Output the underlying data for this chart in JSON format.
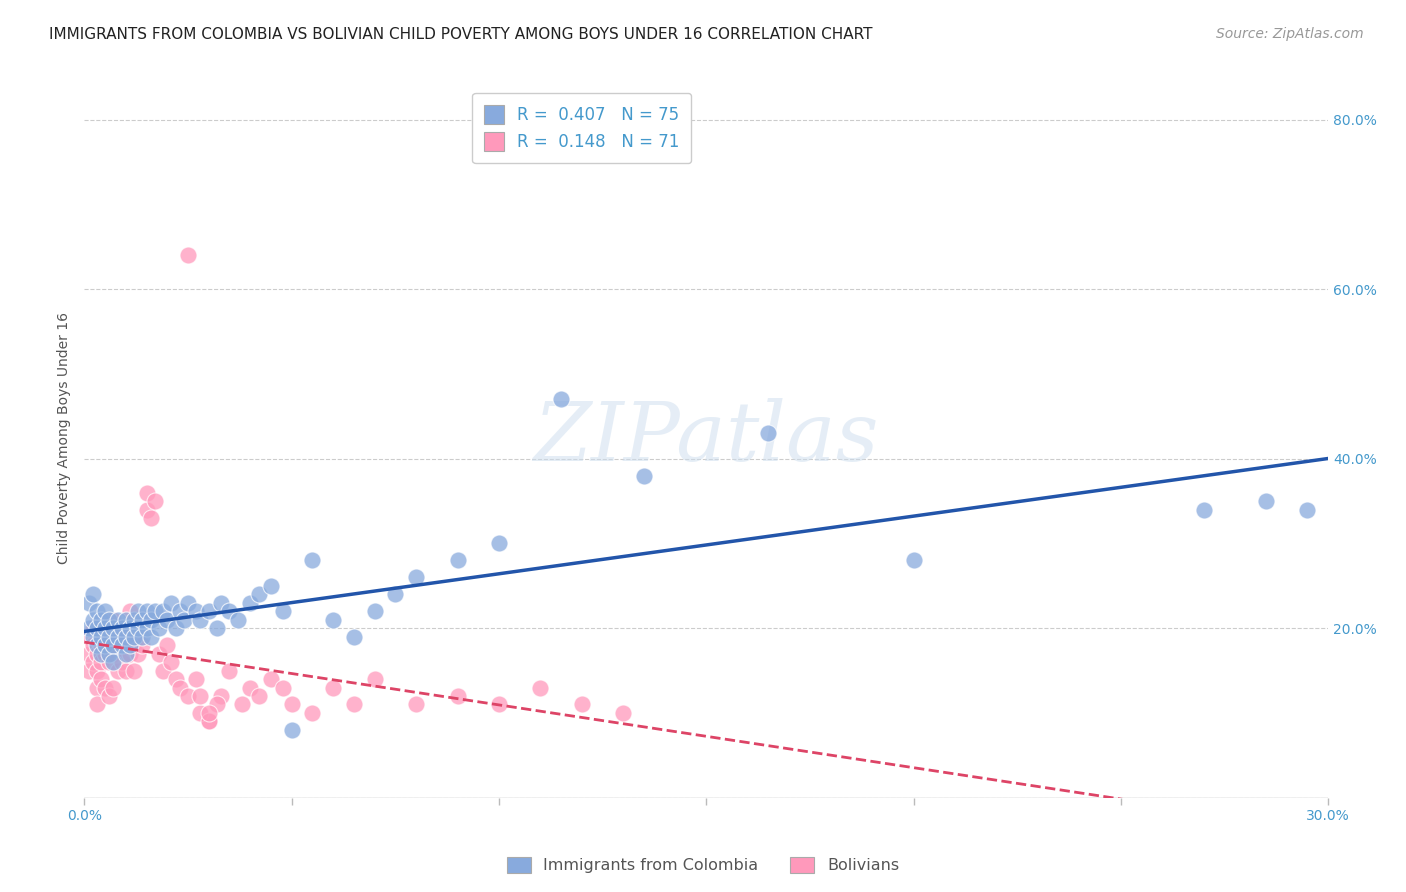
{
  "title": "IMMIGRANTS FROM COLOMBIA VS BOLIVIAN CHILD POVERTY AMONG BOYS UNDER 16 CORRELATION CHART",
  "source": "Source: ZipAtlas.com",
  "ylabel": "Child Poverty Among Boys Under 16",
  "xlim": [
    0.0,
    0.3
  ],
  "ylim": [
    0.0,
    0.85
  ],
  "blue_color": "#88AADD",
  "pink_color": "#FF99BB",
  "blue_line_color": "#2255AA",
  "pink_line_color": "#DD4466",
  "axis_color": "#4499CC",
  "blue_R": 0.407,
  "blue_N": 75,
  "pink_R": 0.148,
  "pink_N": 71,
  "blue_scatter_x": [
    0.001,
    0.001,
    0.002,
    0.002,
    0.002,
    0.003,
    0.003,
    0.003,
    0.004,
    0.004,
    0.004,
    0.005,
    0.005,
    0.005,
    0.006,
    0.006,
    0.006,
    0.007,
    0.007,
    0.007,
    0.008,
    0.008,
    0.009,
    0.009,
    0.01,
    0.01,
    0.01,
    0.011,
    0.011,
    0.012,
    0.012,
    0.013,
    0.013,
    0.014,
    0.014,
    0.015,
    0.015,
    0.016,
    0.016,
    0.017,
    0.018,
    0.019,
    0.02,
    0.021,
    0.022,
    0.023,
    0.024,
    0.025,
    0.027,
    0.028,
    0.03,
    0.032,
    0.033,
    0.035,
    0.037,
    0.04,
    0.042,
    0.045,
    0.048,
    0.05,
    0.055,
    0.06,
    0.065,
    0.07,
    0.075,
    0.08,
    0.09,
    0.1,
    0.115,
    0.135,
    0.165,
    0.2,
    0.27,
    0.285,
    0.295
  ],
  "blue_scatter_y": [
    0.2,
    0.23,
    0.19,
    0.21,
    0.24,
    0.18,
    0.2,
    0.22,
    0.17,
    0.19,
    0.21,
    0.18,
    0.2,
    0.22,
    0.17,
    0.19,
    0.21,
    0.18,
    0.2,
    0.16,
    0.19,
    0.21,
    0.18,
    0.2,
    0.17,
    0.19,
    0.21,
    0.18,
    0.2,
    0.19,
    0.21,
    0.2,
    0.22,
    0.19,
    0.21,
    0.2,
    0.22,
    0.19,
    0.21,
    0.22,
    0.2,
    0.22,
    0.21,
    0.23,
    0.2,
    0.22,
    0.21,
    0.23,
    0.22,
    0.21,
    0.22,
    0.2,
    0.23,
    0.22,
    0.21,
    0.23,
    0.24,
    0.25,
    0.22,
    0.08,
    0.28,
    0.21,
    0.19,
    0.22,
    0.24,
    0.26,
    0.28,
    0.3,
    0.47,
    0.38,
    0.43,
    0.28,
    0.34,
    0.35,
    0.34
  ],
  "pink_scatter_x": [
    0.001,
    0.001,
    0.001,
    0.002,
    0.002,
    0.002,
    0.003,
    0.003,
    0.003,
    0.003,
    0.004,
    0.004,
    0.004,
    0.005,
    0.005,
    0.005,
    0.006,
    0.006,
    0.006,
    0.007,
    0.007,
    0.007,
    0.008,
    0.008,
    0.009,
    0.009,
    0.01,
    0.01,
    0.011,
    0.011,
    0.012,
    0.012,
    0.013,
    0.014,
    0.015,
    0.015,
    0.016,
    0.017,
    0.018,
    0.019,
    0.02,
    0.021,
    0.022,
    0.023,
    0.025,
    0.027,
    0.03,
    0.033,
    0.035,
    0.038,
    0.04,
    0.042,
    0.045,
    0.048,
    0.05,
    0.055,
    0.06,
    0.065,
    0.07,
    0.08,
    0.09,
    0.1,
    0.11,
    0.12,
    0.13,
    0.028,
    0.03,
    0.032,
    0.025,
    0.028,
    0.03
  ],
  "pink_scatter_y": [
    0.19,
    0.17,
    0.15,
    0.2,
    0.18,
    0.16,
    0.17,
    0.15,
    0.13,
    0.11,
    0.18,
    0.16,
    0.14,
    0.19,
    0.17,
    0.13,
    0.18,
    0.16,
    0.12,
    0.21,
    0.17,
    0.13,
    0.19,
    0.15,
    0.2,
    0.16,
    0.19,
    0.15,
    0.22,
    0.17,
    0.18,
    0.15,
    0.17,
    0.18,
    0.34,
    0.36,
    0.33,
    0.35,
    0.17,
    0.15,
    0.18,
    0.16,
    0.14,
    0.13,
    0.12,
    0.14,
    0.09,
    0.12,
    0.15,
    0.11,
    0.13,
    0.12,
    0.14,
    0.13,
    0.11,
    0.1,
    0.13,
    0.11,
    0.14,
    0.11,
    0.12,
    0.11,
    0.13,
    0.11,
    0.1,
    0.1,
    0.09,
    0.11,
    0.64,
    0.12,
    0.1
  ],
  "figsize": [
    14.06,
    8.92
  ],
  "dpi": 100,
  "background_color": "#FFFFFF",
  "grid_color": "#CCCCCC",
  "title_fontsize": 11,
  "source_fontsize": 10,
  "axis_label_fontsize": 10,
  "tick_fontsize": 10,
  "legend_fontsize": 12
}
